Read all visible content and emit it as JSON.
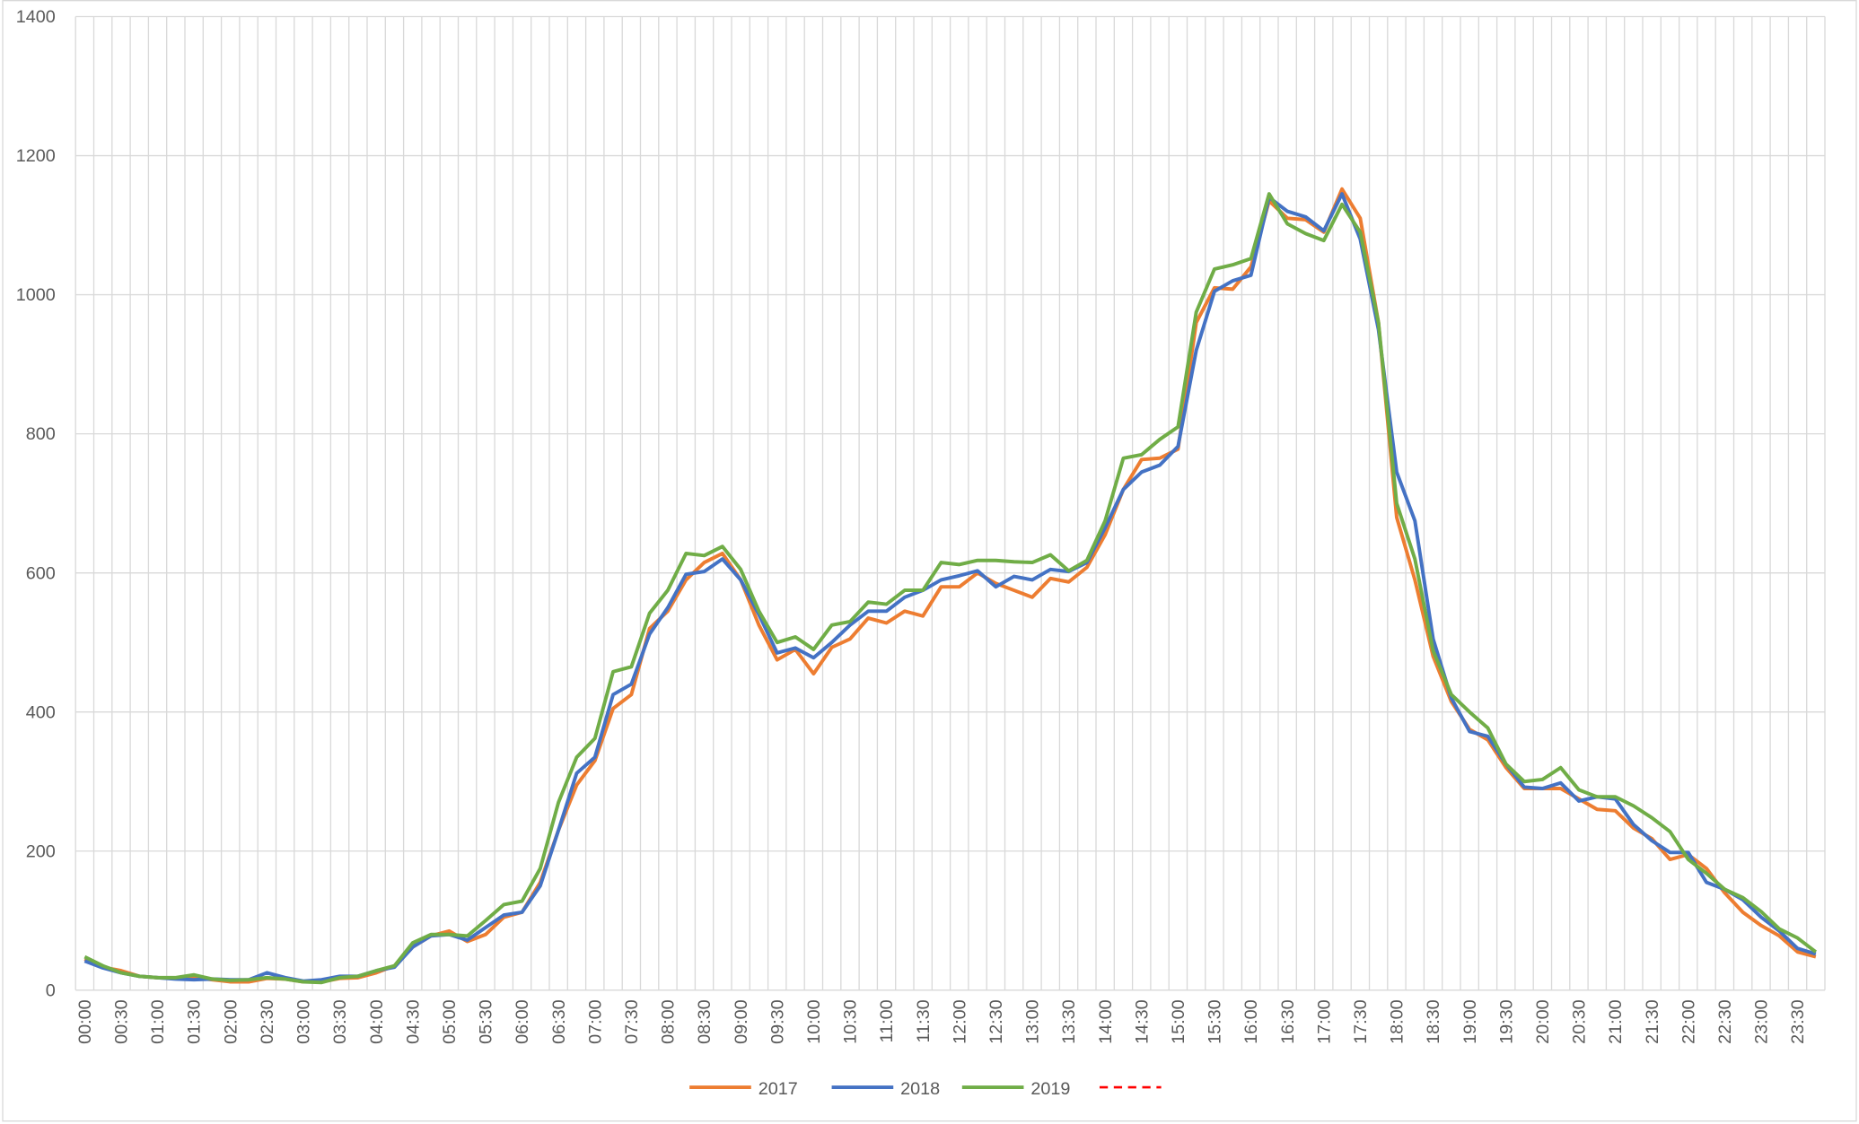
{
  "chart_data": {
    "type": "line",
    "categories": [
      "00:00",
      null,
      "00:30",
      null,
      "01:00",
      null,
      "01:30",
      null,
      "02:00",
      null,
      "02:30",
      null,
      "03:00",
      null,
      "03:30",
      null,
      "04:00",
      null,
      "04:30",
      null,
      "05:00",
      null,
      "05:30",
      null,
      "06:00",
      null,
      "06:30",
      null,
      "07:00",
      null,
      "07:30",
      null,
      "08:00",
      null,
      "08:30",
      null,
      "09:00",
      null,
      "09:30",
      null,
      "10:00",
      null,
      "10:30",
      null,
      "11:00",
      null,
      "11:30",
      null,
      "12:00",
      null,
      "12:30",
      null,
      "13:00",
      null,
      "13:30",
      null,
      "14:00",
      null,
      "14:30",
      null,
      "15:00",
      null,
      "15:30",
      null,
      "16:00",
      null,
      "16:30",
      null,
      "17:00",
      null,
      "17:30",
      null,
      "18:00",
      null,
      "18:30",
      null,
      "19:00",
      null,
      "19:30",
      null,
      "20:00",
      null,
      "20:30",
      null,
      "21:00",
      null,
      "21:30",
      null,
      "22:00",
      null,
      "22:30",
      null,
      "23:00",
      null,
      "23:30",
      null
    ],
    "series": [
      {
        "name": "2017",
        "color": "#ed7d31",
        "values": [
          45,
          33,
          28,
          20,
          18,
          17,
          18,
          15,
          12,
          12,
          17,
          16,
          12,
          12,
          17,
          18,
          25,
          35,
          62,
          78,
          85,
          70,
          80,
          105,
          112,
          155,
          230,
          295,
          330,
          405,
          425,
          520,
          545,
          590,
          615,
          628,
          590,
          525,
          475,
          490,
          455,
          493,
          505,
          535,
          528,
          545,
          538,
          580,
          580,
          600,
          585,
          575,
          565,
          592,
          587,
          608,
          655,
          720,
          763,
          765,
          778,
          960,
          1010,
          1008,
          1040,
          1135,
          1110,
          1108,
          1090,
          1152,
          1110,
          960,
          680,
          590,
          480,
          415,
          375,
          360,
          320,
          290,
          290,
          290,
          275,
          260,
          258,
          233,
          218,
          188,
          195,
          175,
          140,
          112,
          93,
          78,
          55,
          48
        ]
      },
      {
        "name": "2018",
        "color": "#4472c4",
        "values": [
          42,
          32,
          25,
          20,
          18,
          16,
          15,
          16,
          15,
          15,
          25,
          18,
          13,
          15,
          20,
          20,
          28,
          33,
          62,
          78,
          80,
          72,
          90,
          108,
          112,
          150,
          230,
          312,
          335,
          425,
          440,
          512,
          550,
          598,
          602,
          620,
          590,
          540,
          485,
          492,
          478,
          500,
          525,
          545,
          545,
          565,
          575,
          590,
          596,
          603,
          580,
          595,
          590,
          605,
          602,
          615,
          665,
          720,
          745,
          755,
          782,
          920,
          1005,
          1020,
          1028,
          1140,
          1120,
          1112,
          1092,
          1145,
          1080,
          950,
          745,
          675,
          505,
          420,
          372,
          365,
          325,
          292,
          290,
          298,
          272,
          278,
          275,
          238,
          215,
          198,
          198,
          155,
          145,
          130,
          105,
          85,
          60,
          52
        ]
      },
      {
        "name": "2019",
        "color": "#70ad47",
        "values": [
          48,
          35,
          25,
          20,
          18,
          18,
          22,
          16,
          14,
          15,
          18,
          16,
          12,
          11,
          18,
          20,
          28,
          35,
          68,
          80,
          80,
          78,
          100,
          123,
          128,
          175,
          270,
          335,
          362,
          458,
          465,
          542,
          575,
          628,
          625,
          638,
          605,
          545,
          500,
          508,
          490,
          525,
          530,
          558,
          555,
          575,
          575,
          615,
          612,
          618,
          618,
          616,
          615,
          626,
          603,
          618,
          675,
          765,
          770,
          792,
          810,
          975,
          1037,
          1043,
          1052,
          1145,
          1102,
          1088,
          1078,
          1130,
          1090,
          960,
          700,
          620,
          488,
          425,
          400,
          377,
          325,
          300,
          303,
          320,
          288,
          278,
          278,
          265,
          248,
          228,
          188,
          168,
          145,
          133,
          113,
          88,
          75,
          55
        ]
      }
    ],
    "ylim": [
      0,
      1400
    ],
    "yticks": [
      0,
      200,
      400,
      600,
      800,
      1000,
      1200,
      1400
    ],
    "grid": true
  }
}
